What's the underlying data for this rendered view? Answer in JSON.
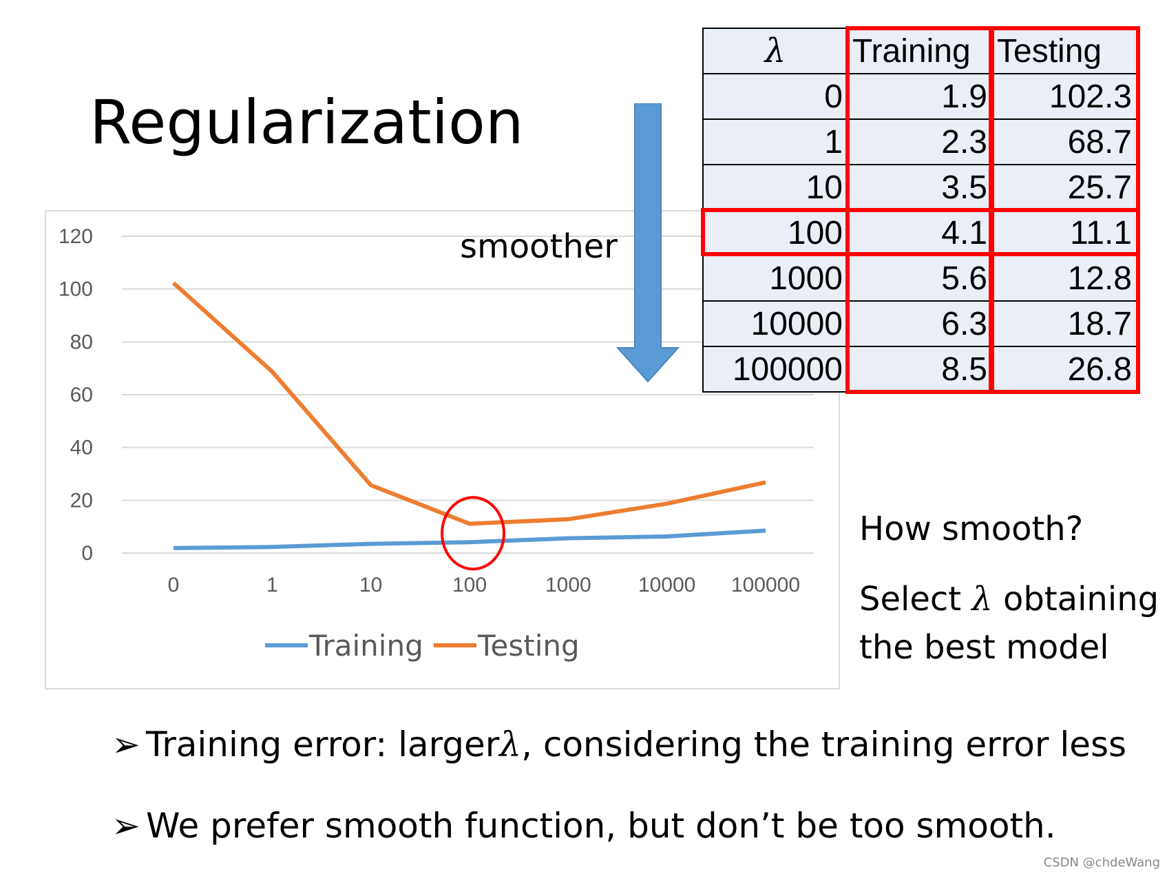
{
  "title": "Regularization",
  "arrow_label": "smoother",
  "table": {
    "headers": [
      "λ",
      "Training",
      "Testing"
    ],
    "rows": [
      [
        "0",
        "1.9",
        "102.3"
      ],
      [
        "1",
        "2.3",
        "68.7"
      ],
      [
        "10",
        "3.5",
        "25.7"
      ],
      [
        "100",
        "4.1",
        "11.1"
      ],
      [
        "1000",
        "5.6",
        "12.8"
      ],
      [
        "10000",
        "6.3",
        "18.7"
      ],
      [
        "100000",
        "8.5",
        "26.8"
      ]
    ],
    "highlight_row": "100",
    "highlight_color": "#ff0000"
  },
  "side_text": {
    "question": "How smooth?",
    "select_prefix": "Select ",
    "lambda_symbol": "λ",
    "select_suffix": " obtaining the best model"
  },
  "bullets": {
    "marker": "➢",
    "b1_prefix": "Training error: larger",
    "b1_lambda": "λ",
    "b1_suffix": ", considering the training error less",
    "b2": "We prefer smooth function, but don’t be too smooth."
  },
  "watermark": "CSDN @chdeWang",
  "colors": {
    "training": "#5b9bd5",
    "testing": "#ed7d31",
    "arrow": "#5b9bd5",
    "highlight": "#ff0000",
    "table_bg": "#e9eef7"
  },
  "chart_data": {
    "type": "line",
    "categories": [
      "0",
      "1",
      "10",
      "100",
      "1000",
      "10000",
      "100000"
    ],
    "series": [
      {
        "name": "Training",
        "values": [
          1.9,
          2.3,
          3.5,
          4.1,
          5.6,
          6.3,
          8.5
        ]
      },
      {
        "name": "Testing",
        "values": [
          102.3,
          68.7,
          25.7,
          11.1,
          12.8,
          18.7,
          26.8
        ]
      }
    ],
    "y_ticks": [
      "0",
      "20",
      "40",
      "60",
      "80",
      "100",
      "120"
    ],
    "ylim": [
      0,
      120
    ],
    "grid": true,
    "legend_position": "bottom",
    "annotation": "circle around 100"
  }
}
